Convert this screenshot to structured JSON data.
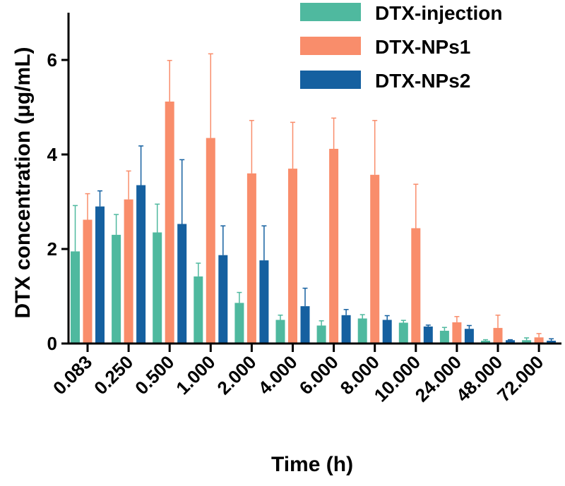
{
  "chart_data": {
    "type": "bar",
    "title": "",
    "xlabel": "Time (h)",
    "ylabel": "DTX concentration (μg/mL)",
    "ylim": [
      0,
      7
    ],
    "yticks": [
      0,
      2,
      4,
      6
    ],
    "grid": false,
    "legend_position": "top-right",
    "categories": [
      "0.083",
      "0.250",
      "0.500",
      "1.000",
      "2.000",
      "4.000",
      "6.000",
      "8.000",
      "10.000",
      "24.000",
      "48.000",
      "72.000"
    ],
    "series": [
      {
        "name": "DTX-injection",
        "color": "#4fb99f",
        "values": [
          1.95,
          2.3,
          2.35,
          1.42,
          0.86,
          0.5,
          0.38,
          0.53,
          0.44,
          0.27,
          0.06,
          0.07
        ],
        "errors": [
          0.97,
          0.43,
          0.6,
          0.28,
          0.22,
          0.1,
          0.1,
          0.08,
          0.05,
          0.07,
          0.02,
          0.05
        ]
      },
      {
        "name": "DTX-NPs1",
        "color": "#f98d6b",
        "values": [
          2.62,
          3.05,
          5.12,
          4.35,
          3.6,
          3.7,
          4.12,
          3.57,
          2.44,
          0.45,
          0.33,
          0.13
        ],
        "errors": [
          0.55,
          0.6,
          0.87,
          1.78,
          1.12,
          0.98,
          0.65,
          1.15,
          0.93,
          0.12,
          0.27,
          0.08
        ]
      },
      {
        "name": "DTX-NPs2",
        "color": "#1560a0",
        "values": [
          2.9,
          3.35,
          2.53,
          1.87,
          1.76,
          0.79,
          0.6,
          0.5,
          0.36,
          0.31,
          0.07,
          0.06
        ],
        "errors": [
          0.33,
          0.83,
          1.36,
          0.62,
          0.73,
          0.38,
          0.12,
          0.09,
          0.03,
          0.07,
          0.01,
          0.04
        ]
      }
    ]
  }
}
